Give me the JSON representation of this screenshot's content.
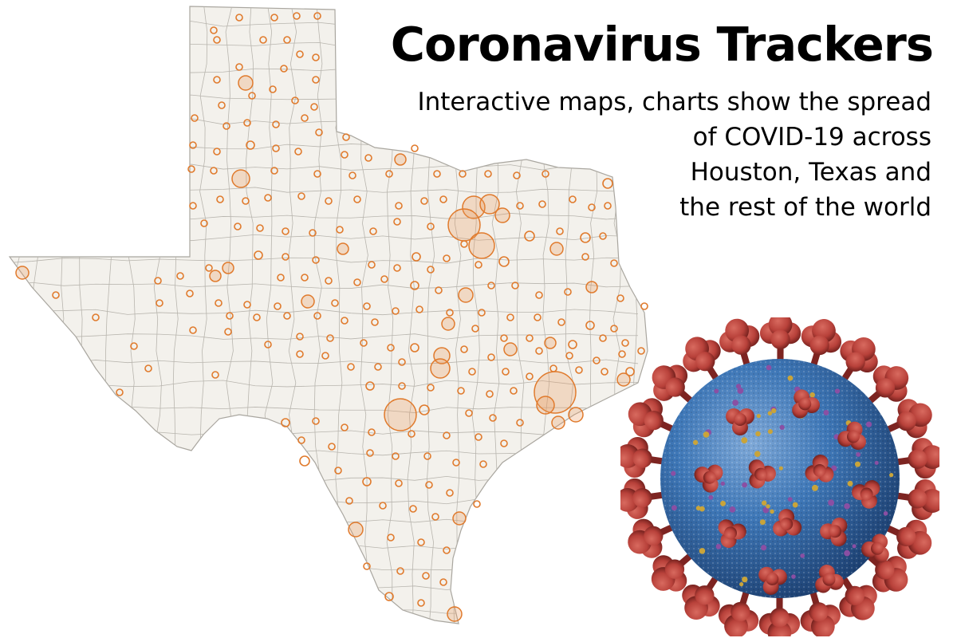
{
  "headline": {
    "title": "Coronavirus Trackers",
    "subtitle_lines": [
      "Interactive maps, charts show the spread",
      "of COVID-19 across",
      "Houston, Texas and",
      "the rest of the world"
    ]
  },
  "map": {
    "region": "Texas",
    "style": "proportional circles by county",
    "colors": {
      "state_fill": "#f3f1ec",
      "county_border": "#b8b5ae",
      "circle_stroke": "#e07a2c",
      "circle_fill": "rgba(232,150,90,0.28)",
      "background": "#ffffff"
    }
  },
  "illustration": {
    "name": "coronavirus-particle",
    "colors": {
      "body": "#3e77b7",
      "body_dark": "#24508a",
      "spike": "#b8413a",
      "spike_dark": "#7d2421",
      "accent_yellow": "#c9a43a",
      "accent_purple": "#8a4fa3"
    }
  }
}
